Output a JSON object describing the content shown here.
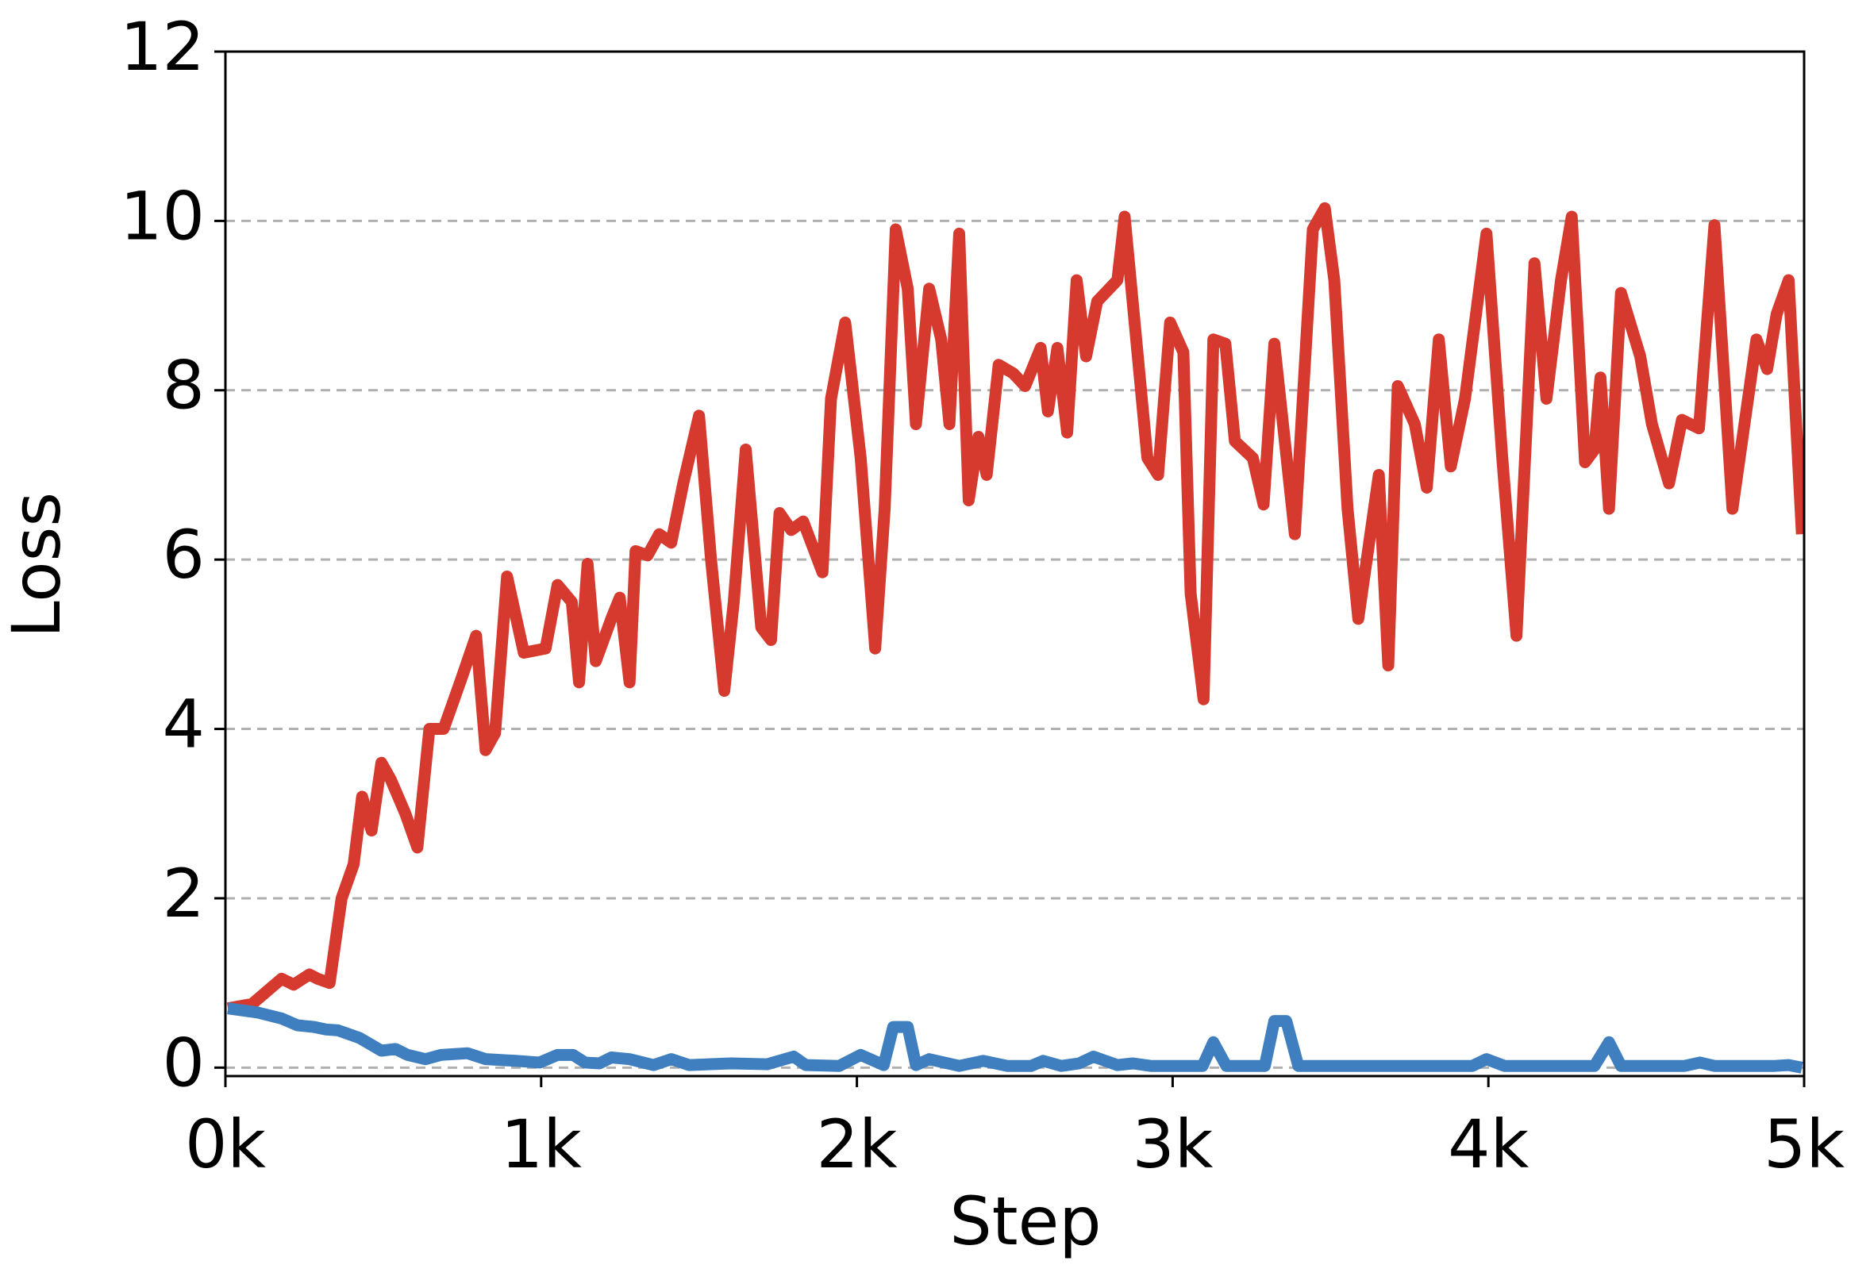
{
  "chart_data": {
    "type": "line",
    "xlabel": "Step",
    "ylabel": "Loss",
    "xlim": [
      0,
      5000
    ],
    "xticks": [
      {
        "value": 0,
        "label": "0k"
      },
      {
        "value": 1000,
        "label": "1k"
      },
      {
        "value": 2000,
        "label": "2k"
      },
      {
        "value": 3000,
        "label": "3k"
      },
      {
        "value": 4000,
        "label": "4k"
      },
      {
        "value": 5000,
        "label": "5k"
      }
    ],
    "ylim": [
      -0.1,
      12
    ],
    "yticks": [
      0,
      2,
      4,
      6,
      8,
      10,
      12
    ],
    "grid": true,
    "series": [
      {
        "color": "#d63a2f",
        "x": [
          8,
          84,
          178,
          216,
          266,
          292,
          330,
          368,
          406,
          433,
          463,
          494,
          524,
          570,
          608,
          646,
          691,
          748,
          794,
          824,
          854,
          892,
          945,
          1014,
          1052,
          1097,
          1120,
          1147,
          1173,
          1222,
          1249,
          1280,
          1299,
          1337,
          1374,
          1412,
          1450,
          1500,
          1538,
          1580,
          1610,
          1648,
          1697,
          1728,
          1755,
          1792,
          1830,
          1891,
          1918,
          1963,
          2012,
          2058,
          2088,
          2123,
          2161,
          2187,
          2229,
          2267,
          2293,
          2324,
          2354,
          2385,
          2411,
          2449,
          2495,
          2533,
          2582,
          2605,
          2635,
          2666,
          2696,
          2726,
          2761,
          2825,
          2848,
          2920,
          2954,
          2992,
          3034,
          3057,
          3098,
          3129,
          3167,
          3197,
          3254,
          3288,
          3322,
          3387,
          3444,
          3482,
          3512,
          3554,
          3588,
          3653,
          3683,
          3713,
          3767,
          3805,
          3843,
          3881,
          3926,
          3994,
          4044,
          4089,
          4146,
          4184,
          4230,
          4264,
          4306,
          4336,
          4355,
          4382,
          4420,
          4481,
          4518,
          4572,
          4613,
          4667,
          4716,
          4773,
          4849,
          4883,
          4913,
          4951,
          4993
        ],
        "values": [
          0.7,
          0.75,
          1.05,
          0.98,
          1.1,
          1.05,
          1.0,
          2.0,
          2.4,
          3.2,
          2.8,
          3.6,
          3.4,
          3.0,
          2.6,
          4.0,
          4.0,
          4.6,
          5.1,
          3.75,
          3.95,
          5.8,
          4.9,
          4.95,
          5.7,
          5.5,
          4.55,
          5.95,
          4.8,
          5.3,
          5.55,
          4.55,
          6.1,
          6.05,
          6.3,
          6.2,
          6.9,
          7.7,
          6.0,
          4.45,
          5.5,
          7.3,
          5.2,
          5.05,
          6.55,
          6.35,
          6.45,
          5.85,
          7.9,
          8.8,
          7.2,
          4.95,
          6.6,
          9.9,
          9.2,
          7.6,
          9.2,
          8.6,
          7.6,
          9.85,
          6.7,
          7.45,
          7.0,
          8.3,
          8.2,
          8.05,
          8.5,
          7.75,
          8.5,
          7.5,
          9.3,
          8.4,
          9.05,
          9.3,
          10.05,
          7.2,
          7.0,
          8.8,
          8.45,
          5.6,
          4.35,
          8.6,
          8.55,
          7.4,
          7.2,
          6.65,
          8.55,
          6.3,
          9.9,
          10.15,
          9.3,
          6.6,
          5.3,
          7.0,
          4.75,
          8.05,
          7.6,
          6.85,
          8.6,
          7.1,
          7.9,
          9.85,
          7.2,
          5.1,
          9.5,
          7.9,
          9.3,
          10.05,
          7.15,
          7.3,
          8.15,
          6.6,
          9.15,
          8.4,
          7.6,
          6.9,
          7.65,
          7.55,
          9.95,
          6.6,
          8.6,
          8.25,
          8.9,
          9.3,
          6.3
        ]
      },
      {
        "color": "#3f7fbf",
        "x": [
          8,
          103,
          178,
          228,
          281,
          319,
          357,
          425,
          494,
          539,
          577,
          634,
          683,
          767,
          824,
          919,
          995,
          1052,
          1101,
          1139,
          1185,
          1222,
          1280,
          1356,
          1412,
          1469,
          1602,
          1716,
          1800,
          1838,
          1944,
          2012,
          2085,
          2115,
          2161,
          2187,
          2229,
          2324,
          2400,
          2476,
          2552,
          2590,
          2647,
          2704,
          2749,
          2825,
          2874,
          2931,
          3095,
          3129,
          3170,
          3292,
          3322,
          3360,
          3398,
          3653,
          3691,
          3949,
          3994,
          4051,
          4222,
          4336,
          4382,
          4420,
          4621,
          4670,
          4716,
          4906,
          4951,
          4993
        ],
        "values": [
          0.7,
          0.65,
          0.58,
          0.5,
          0.48,
          0.45,
          0.44,
          0.35,
          0.2,
          0.22,
          0.15,
          0.1,
          0.15,
          0.17,
          0.1,
          0.08,
          0.06,
          0.15,
          0.15,
          0.06,
          0.05,
          0.12,
          0.1,
          0.03,
          0.1,
          0.03,
          0.05,
          0.04,
          0.13,
          0.03,
          0.02,
          0.15,
          0.03,
          0.48,
          0.48,
          0.03,
          0.1,
          0.02,
          0.08,
          0.02,
          0.02,
          0.08,
          0.02,
          0.05,
          0.13,
          0.03,
          0.05,
          0.02,
          0.02,
          0.3,
          0.02,
          0.02,
          0.55,
          0.55,
          0.02,
          0.02,
          0.02,
          0.02,
          0.1,
          0.02,
          0.02,
          0.02,
          0.3,
          0.02,
          0.02,
          0.06,
          0.02,
          0.02,
          0.03,
          0.0
        ]
      }
    ]
  }
}
